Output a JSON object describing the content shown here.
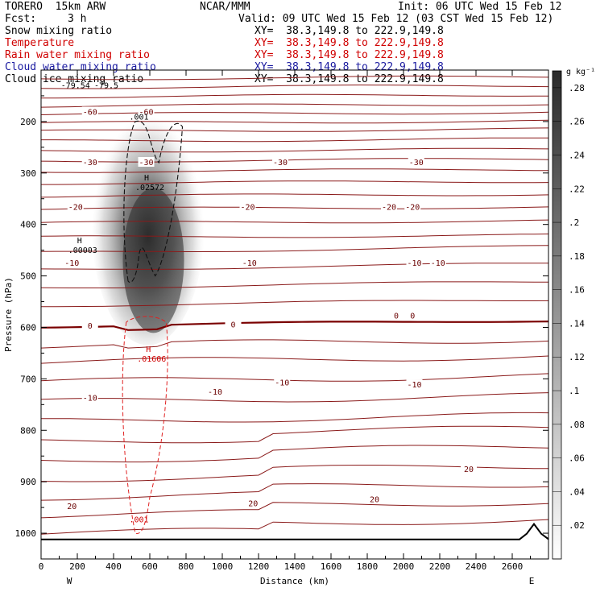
{
  "header": {
    "model": "TORERO  15km ARW",
    "center": "NCAR/MMM",
    "init": "Init: 06 UTC Wed 15 Feb 12",
    "fcst_label": "Fcst:",
    "fcst_value": "3 h",
    "valid": "Valid: 09 UTC Wed 15 Feb 12 (03 CST Wed 15 Feb 12)"
  },
  "fields": [
    {
      "name": "Snow mixing ratio",
      "xy": "XY=  38.3,149.8 to 222.9,149.8",
      "color": "#000000"
    },
    {
      "name": "Temperature",
      "xy": "XY=  38.3,149.8 to 222.9,149.8",
      "color": "#d00000"
    },
    {
      "name": "Rain water mixing ratio",
      "xy": "XY=  38.3,149.8 to 222.9,149.8",
      "color": "#d00000"
    },
    {
      "name": "Cloud water mixing ratio",
      "xy": "XY=  38.3,149.8 to 222.9,149.8",
      "color": "#1a1aa0"
    },
    {
      "name": "Cloud ice mixing ratio",
      "xy": "XY=  38.3,149.8 to 222.9,149.8",
      "color": "#000000"
    }
  ],
  "chart_data": {
    "type": "cross-section",
    "xlabel": "Distance (km)",
    "ylabel": "Pressure (hPa)",
    "xlim": [
      0,
      2800
    ],
    "ylim": [
      100,
      1050
    ],
    "x_ticks": [
      0,
      200,
      400,
      600,
      800,
      1000,
      1200,
      1400,
      1600,
      1800,
      2000,
      2200,
      2400,
      2600
    ],
    "y_ticks": [
      200,
      300,
      400,
      500,
      600,
      700,
      800,
      900,
      1000
    ],
    "x_end_labels": {
      "left": "W",
      "right": "E"
    },
    "colorbar": {
      "unit": "g kg⁻¹",
      "ticks": [
        ".02",
        ".04",
        ".06",
        ".08",
        ".1",
        ".12",
        ".14",
        ".16",
        ".18",
        ".2",
        ".22",
        ".24",
        ".26",
        ".28"
      ]
    },
    "temperature_labels": [
      {
        "text": "-60",
        "x": 270,
        "p": 182
      },
      {
        "text": "-60",
        "x": 580,
        "p": 182
      },
      {
        "text": "-30",
        "x": 270,
        "p": 280
      },
      {
        "text": "-30",
        "x": 580,
        "p": 280
      },
      {
        "text": "-30",
        "x": 1320,
        "p": 280
      },
      {
        "text": "-30",
        "x": 2070,
        "p": 280
      },
      {
        "text": "-20",
        "x": 190,
        "p": 367
      },
      {
        "text": "-20",
        "x": 1140,
        "p": 367
      },
      {
        "text": "-20",
        "x": 1920,
        "p": 367
      },
      {
        "text": "-20",
        "x": 2050,
        "p": 367
      },
      {
        "text": "-10",
        "x": 170,
        "p": 476
      },
      {
        "text": "-10",
        "x": 1150,
        "p": 476
      },
      {
        "text": "-10",
        "x": 2060,
        "p": 476
      },
      {
        "text": "-10",
        "x": 2190,
        "p": 476
      },
      {
        "text": "0",
        "x": 270,
        "p": 598
      },
      {
        "text": "0",
        "x": 1060,
        "p": 595
      },
      {
        "text": "0",
        "x": 1960,
        "p": 578
      },
      {
        "text": "0",
        "x": 2050,
        "p": 578
      },
      {
        "text": "-10",
        "x": 270,
        "p": 738
      },
      {
        "text": "-10",
        "x": 960,
        "p": 726
      },
      {
        "text": "-10",
        "x": 1330,
        "p": 708
      },
      {
        "text": "-10",
        "x": 2060,
        "p": 712
      },
      {
        "text": "20",
        "x": 170,
        "p": 948
      },
      {
        "text": "20",
        "x": 1170,
        "p": 943
      },
      {
        "text": "20",
        "x": 1840,
        "p": 935
      },
      {
        "text": "20",
        "x": 2360,
        "p": 876
      }
    ],
    "extrema": [
      {
        "symbol": "H",
        "value": ".02572",
        "x": 600,
        "p": 324,
        "color": "#000000"
      },
      {
        "symbol": "H",
        "value": ".00003",
        "x": 230,
        "p": 446,
        "color": "#000000"
      },
      {
        "symbol": "H",
        "value": ".01606",
        "x": 610,
        "p": 657,
        "color": "#d00000"
      }
    ],
    "other_labels": [
      {
        "text": ".001",
        "x": 540,
        "p": 196,
        "color": "#000000"
      },
      {
        "text": ".001",
        "x": 540,
        "p": 979,
        "color": "#d00000"
      },
      {
        "text": "-79.54",
        "x": 190,
        "p": 135,
        "color": "#000000"
      },
      {
        "text": "-79.5",
        "x": 360,
        "p": 135,
        "color": "#000000"
      }
    ]
  }
}
